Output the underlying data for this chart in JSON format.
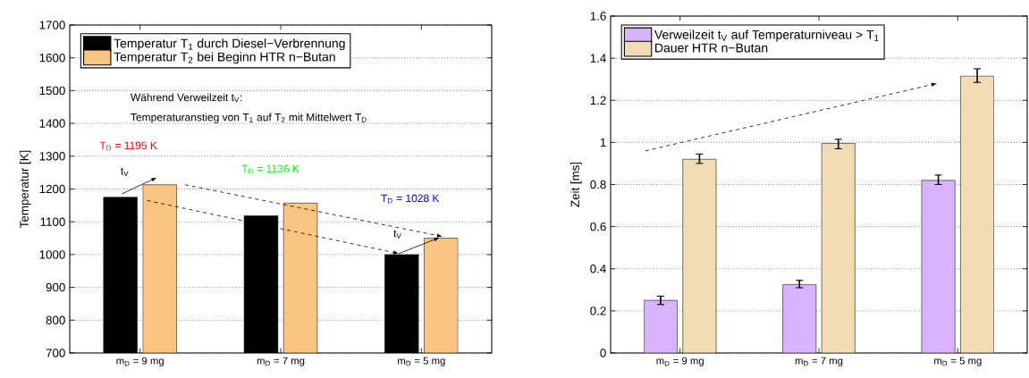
{
  "chart_data": [
    {
      "type": "bar",
      "ylabel": "Temperatur [K]",
      "categories": [
        "m$_{D}$ = 9 mg",
        "m$_{D}$ = 7 mg",
        "m$_{D}$ = 5 mg"
      ],
      "series": [
        {
          "name": "Temperatur T$_{1}$ durch Diesel−Verbrennung",
          "color": "#000000",
          "values": [
            1175,
            1118,
            1000
          ]
        },
        {
          "name": "Temperatur T$_{2}$ bei Beginn HTR n−Butan",
          "color": "#fac483",
          "values": [
            1213,
            1157,
            1050
          ]
        }
      ],
      "ylim": [
        700,
        1700
      ],
      "yticks": [
        700,
        800,
        900,
        1000,
        1100,
        1200,
        1300,
        1400,
        1500,
        1600,
        1700
      ],
      "grid": "y",
      "legend": "top left",
      "annotations": [
        "Während Verweilzeit t$_{V}$:",
        "Temperaturanstieg von T$_{1}$ auf T$_{2}$ mit Mittelwert T$_{D}$",
        "T$_{D}$ = 1195 K",
        "T$_{D}$ = 1136 K",
        "T$_{D}$ = 1028 K",
        "t$_{V}$",
        "t$_{V}$"
      ]
    },
    {
      "type": "bar",
      "ylabel": "Zeit [ms]",
      "categories": [
        "m$_{D}$ = 9 mg",
        "m$_{D}$ = 7 mg",
        "m$_{D}$ = 5 mg"
      ],
      "series": [
        {
          "name": "Verweilzeit t$_{V}$ auf Temperaturniveau > T$_{1}$",
          "color": "#d8b4fe",
          "values": [
            0.25,
            0.325,
            0.82
          ],
          "errors": [
            [
              0.23,
              0.27
            ],
            [
              0.31,
              0.345
            ],
            [
              0.8,
              0.845
            ]
          ]
        },
        {
          "name": "Dauer HTR n−Butan",
          "color": "#f1dbb5",
          "values": [
            0.92,
            0.995,
            1.315
          ],
          "errors": [
            [
              0.9,
              0.945
            ],
            [
              0.97,
              1.015
            ],
            [
              1.285,
              1.35
            ]
          ]
        }
      ],
      "ylim": [
        0,
        1.6
      ],
      "yticks": [
        0,
        0.2,
        0.4,
        0.6,
        0.8,
        1,
        1.2,
        1.4,
        1.6
      ],
      "grid": "y",
      "legend": "top left"
    }
  ]
}
